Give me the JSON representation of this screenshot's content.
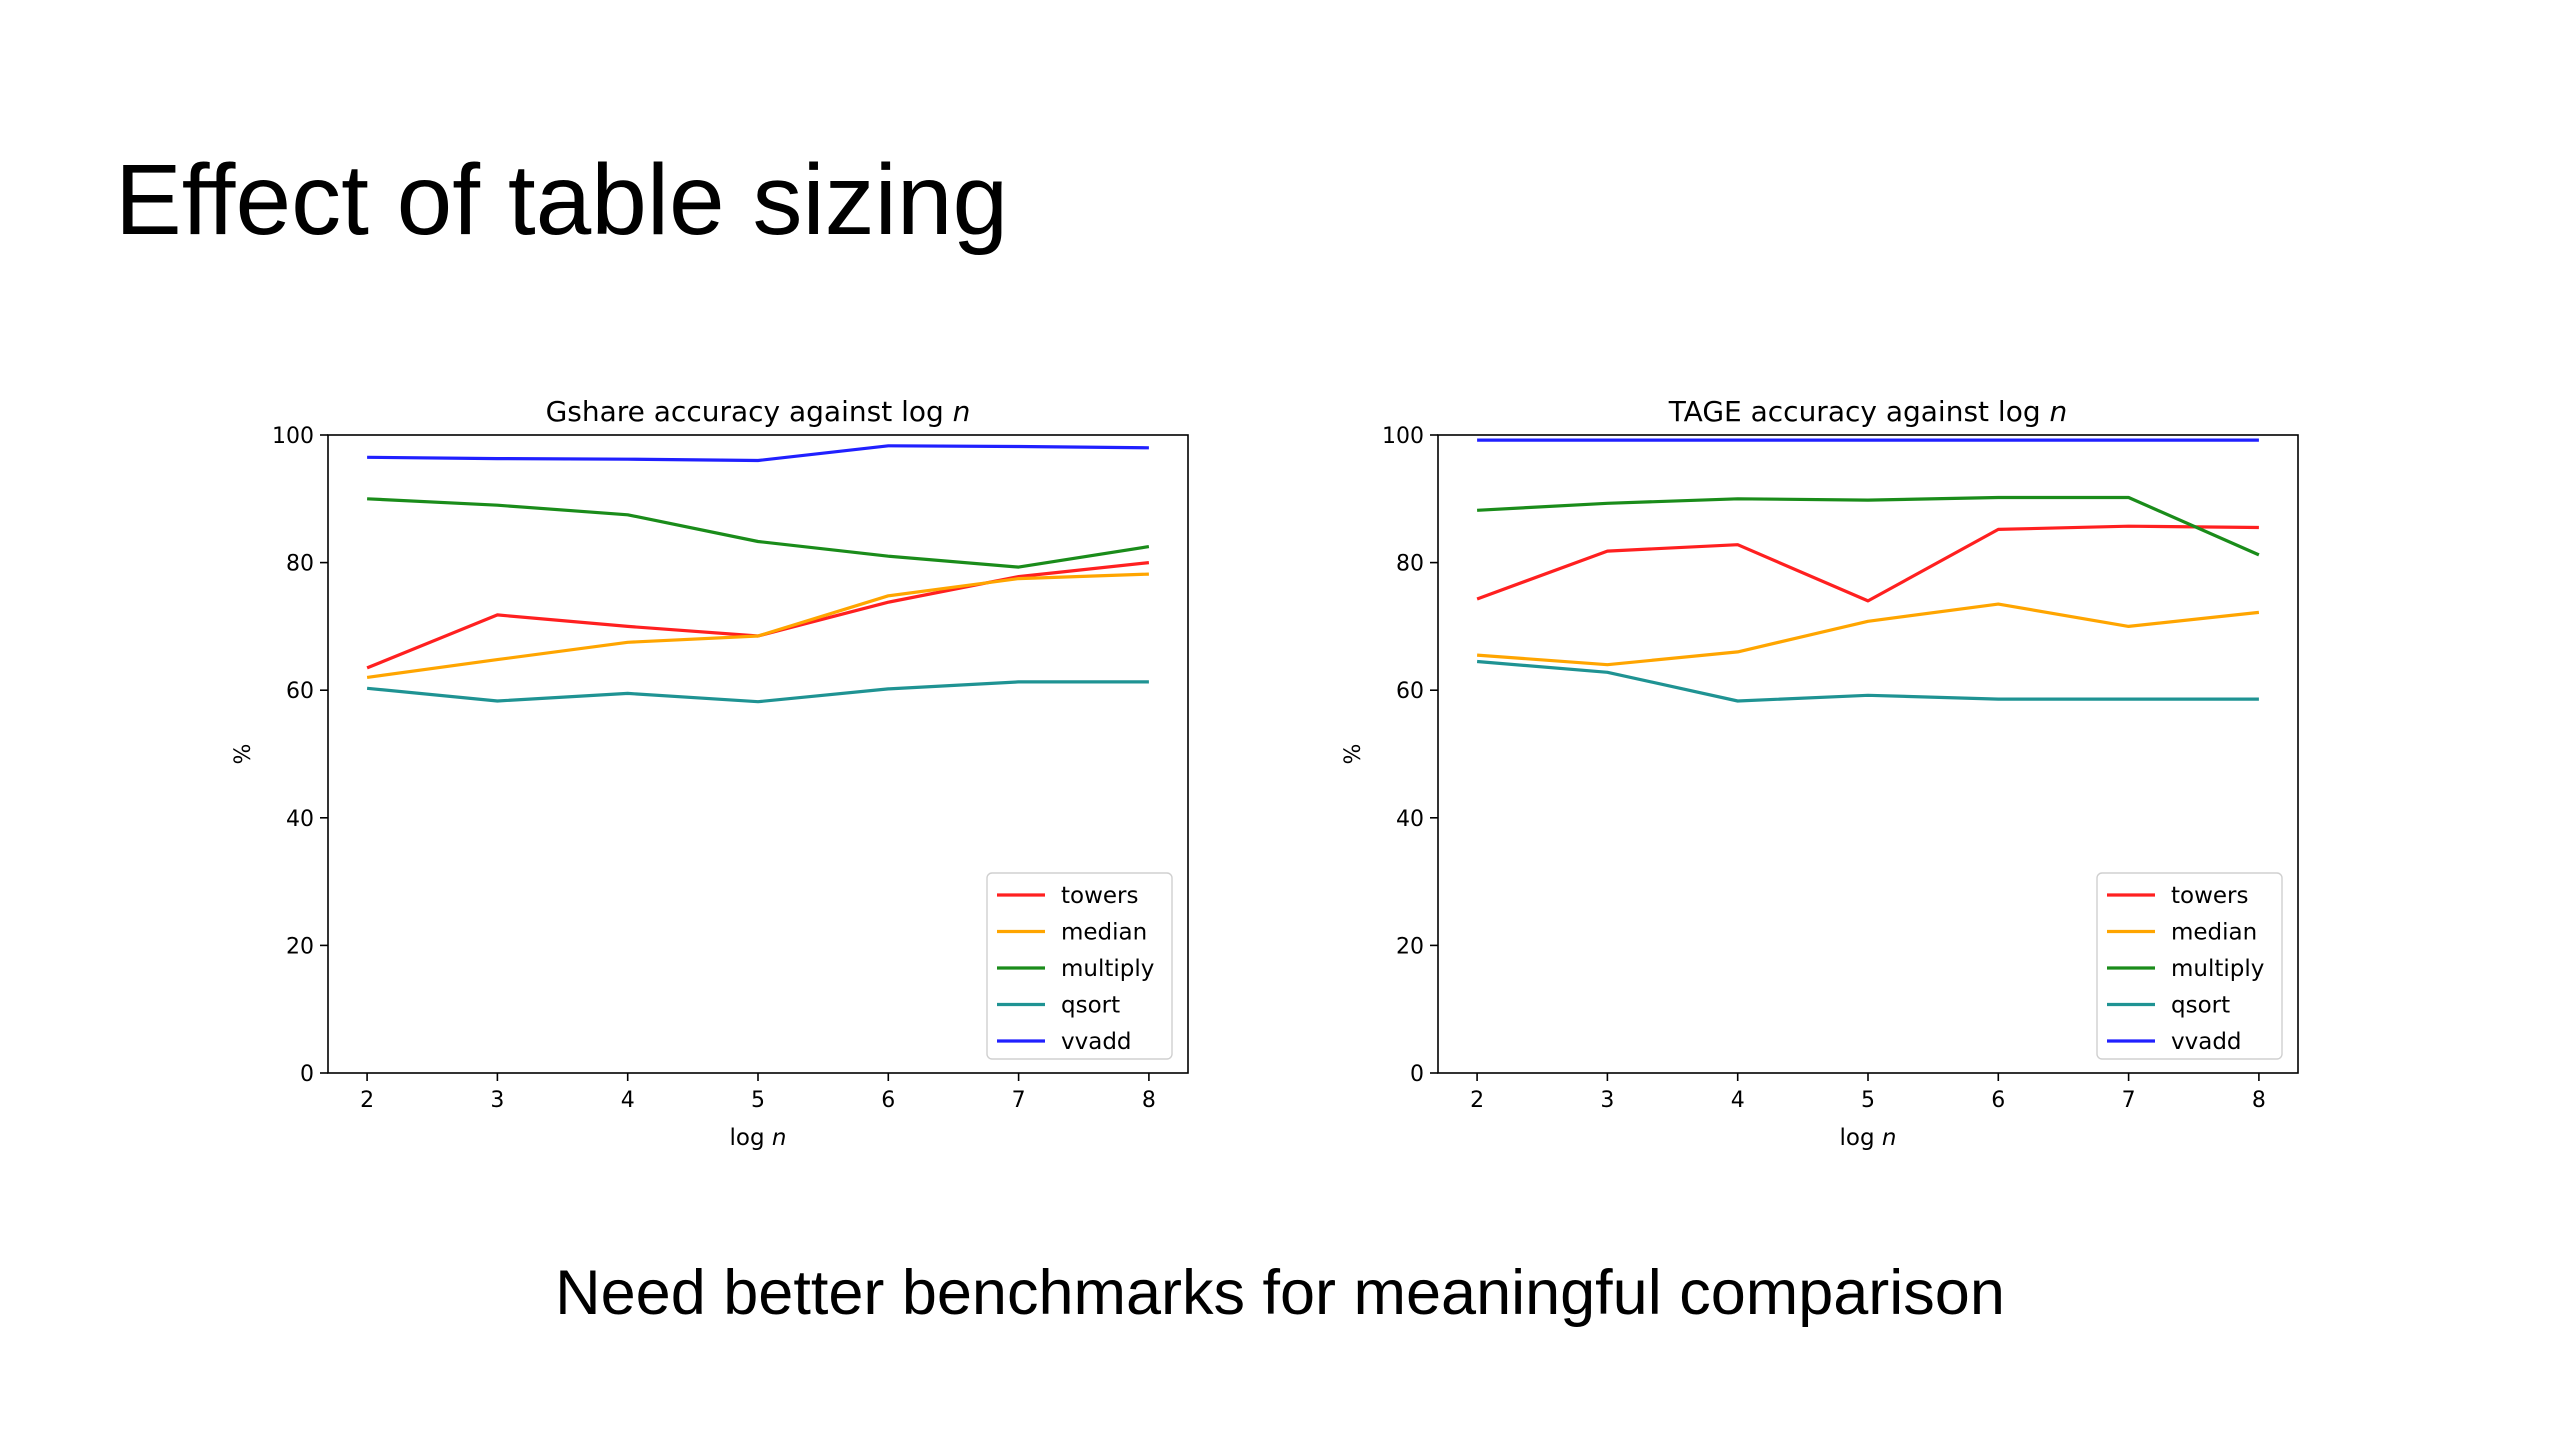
{
  "slide": {
    "title": "Effect of table sizing",
    "subtitle": "Need better benchmarks for meaningful comparison"
  },
  "colors": {
    "towers": "#ff2020",
    "median": "#ffa500",
    "multiply": "#1a8c1a",
    "qsort": "#1f9393",
    "vvadd": "#2020ff"
  },
  "chart_data": [
    {
      "type": "line",
      "title_prefix": "Gshare accuracy against log ",
      "title_var": "n",
      "xlabel_prefix": "log ",
      "xlabel_var": "n",
      "ylabel": "%",
      "x": [
        2,
        3,
        4,
        5,
        6,
        7,
        8
      ],
      "xticks": [
        "2",
        "3",
        "4",
        "5",
        "6",
        "7",
        "8"
      ],
      "yticks": [
        "0",
        "20",
        "40",
        "60",
        "80",
        "100"
      ],
      "ylim": [
        0,
        100
      ],
      "xlim": [
        1.7,
        8.3
      ],
      "legend_position": "lower right",
      "grid": false,
      "series": [
        {
          "name": "towers",
          "color": "#ff2020",
          "values": [
            63.5,
            71.8,
            70.0,
            68.5,
            73.8,
            77.8,
            80.0
          ]
        },
        {
          "name": "median",
          "color": "#ffa500",
          "values": [
            62.0,
            64.8,
            67.5,
            68.5,
            74.8,
            77.5,
            78.2
          ]
        },
        {
          "name": "multiply",
          "color": "#1a8c1a",
          "values": [
            90.0,
            89.0,
            87.5,
            83.3,
            81.0,
            79.3,
            82.5
          ]
        },
        {
          "name": "qsort",
          "color": "#1f9393",
          "values": [
            60.3,
            58.3,
            59.5,
            58.2,
            60.2,
            61.3,
            61.3
          ]
        },
        {
          "name": "vvadd",
          "color": "#2020ff",
          "values": [
            96.5,
            96.3,
            96.2,
            96.0,
            98.3,
            98.2,
            98.0
          ]
        }
      ]
    },
    {
      "type": "line",
      "title_prefix": "TAGE accuracy against log ",
      "title_var": "n",
      "xlabel_prefix": "log ",
      "xlabel_var": "n",
      "ylabel": "%",
      "x": [
        2,
        3,
        4,
        5,
        6,
        7,
        8
      ],
      "xticks": [
        "2",
        "3",
        "4",
        "5",
        "6",
        "7",
        "8"
      ],
      "yticks": [
        "0",
        "20",
        "40",
        "60",
        "80",
        "100"
      ],
      "ylim": [
        0,
        100
      ],
      "xlim": [
        1.7,
        8.3
      ],
      "legend_position": "lower right",
      "grid": false,
      "series": [
        {
          "name": "towers",
          "color": "#ff2020",
          "values": [
            74.3,
            81.8,
            82.8,
            74.0,
            85.2,
            85.7,
            85.5
          ]
        },
        {
          "name": "median",
          "color": "#ffa500",
          "values": [
            65.5,
            64.0,
            66.0,
            70.8,
            73.5,
            70.0,
            72.2
          ]
        },
        {
          "name": "multiply",
          "color": "#1a8c1a",
          "values": [
            88.2,
            89.3,
            90.0,
            89.8,
            90.2,
            90.2,
            81.2
          ]
        },
        {
          "name": "qsort",
          "color": "#1f9393",
          "values": [
            64.5,
            62.8,
            58.3,
            59.2,
            58.6,
            58.6,
            58.6
          ]
        },
        {
          "name": "vvadd",
          "color": "#2020ff",
          "values": [
            99.2,
            99.2,
            99.2,
            99.2,
            99.2,
            99.2,
            99.2
          ]
        }
      ]
    }
  ]
}
